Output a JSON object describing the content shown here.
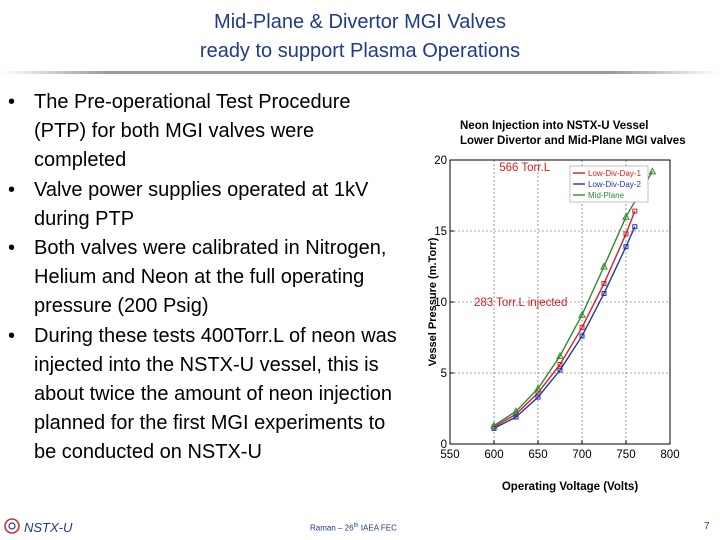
{
  "slide": {
    "title_line1": "Mid-Plane & Divertor MGI Valves",
    "title_line2": "ready to support Plasma Operations",
    "bullets": [
      "The Pre-operational Test Procedure (PTP) for both MGI valves were completed",
      "Valve power supplies operated at 1kV during PTP",
      "Both valves were calibrated in Nitrogen, Helium and Neon at the full operating pressure (200 Psig)",
      "During these tests 400Torr.L of neon was injected into the NSTX-U vessel, this is about twice the amount of neon injection planned for the first MGI experiments to be conducted on NSTX-U"
    ],
    "bullet_char": "•"
  },
  "footer": {
    "brand": "NSTX-U",
    "presenter": "Raman – 26",
    "presenter_sup": "th",
    "presenter_tail": " IAEA FEC",
    "page": "7"
  },
  "colors": {
    "title": "#1f3a8a",
    "low_div_day1": "#d42020",
    "low_div_day2": "#2233aa",
    "mid_plane": "#2f8a2f",
    "annotation": "#d42020"
  },
  "chart_data": {
    "type": "line",
    "title_lines": [
      "Neon Injection into NSTX-U Vessel",
      "Lower Divertor and Mid-Plane MGI valves"
    ],
    "xlabel": "Operating Voltage (Volts)",
    "ylabel": "Vessel Pressure (m.Torr)",
    "xlim": [
      550,
      800
    ],
    "ylim": [
      0,
      20
    ],
    "xticks": [
      550,
      600,
      650,
      700,
      750,
      800
    ],
    "yticks": [
      0,
      5,
      10,
      15,
      20
    ],
    "grid": true,
    "legend_position": "top-right",
    "series": [
      {
        "name": "Low-Div-Day-1",
        "color": "#d42020",
        "marker": "square",
        "x": [
          600,
          625,
          650,
          675,
          700,
          725,
          750,
          760
        ],
        "y": [
          1.2,
          2.1,
          3.6,
          5.6,
          8.2,
          11.3,
          14.8,
          16.4
        ]
      },
      {
        "name": "Low-Div-Day-2",
        "color": "#2233aa",
        "marker": "square",
        "x": [
          600,
          625,
          650,
          675,
          700,
          725,
          750,
          760
        ],
        "y": [
          1.1,
          1.9,
          3.3,
          5.2,
          7.6,
          10.6,
          13.9,
          15.3
        ]
      },
      {
        "name": "Mid-Plane",
        "color": "#2f8a2f",
        "marker": "triangle",
        "x": [
          600,
          625,
          650,
          675,
          700,
          725,
          750,
          780
        ],
        "y": [
          1.3,
          2.3,
          3.9,
          6.2,
          9.1,
          12.5,
          16.0,
          19.2
        ]
      }
    ],
    "annotations": [
      {
        "text": "566 Torr.L",
        "y": 19.5
      },
      {
        "text": "283 Torr.L injected",
        "y": 10
      }
    ]
  }
}
